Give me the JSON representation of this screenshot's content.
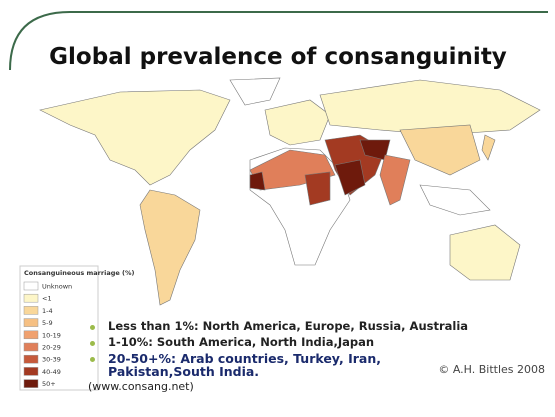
{
  "title": "Global prevalence of consanguinity",
  "legend": {
    "title": "Consanguineous marriage (%)",
    "items": [
      {
        "label": "Unknown",
        "color": "#ffffff"
      },
      {
        "label": "<1",
        "color": "#fdf6c8"
      },
      {
        "label": "1-4",
        "color": "#f9d79a"
      },
      {
        "label": "5-9",
        "color": "#f6c083"
      },
      {
        "label": "10-19",
        "color": "#f0a16f"
      },
      {
        "label": "20-29",
        "color": "#e07f5a"
      },
      {
        "label": "30-39",
        "color": "#c65a3b"
      },
      {
        "label": "40-49",
        "color": "#a33a22"
      },
      {
        "label": "50+",
        "color": "#6e1a0c"
      }
    ]
  },
  "bullets": [
    "Less than 1%: North America, Europe, Russia, Australia",
    "1-10%: South America, North India,Japan",
    "20-50+%: Arab countries, Turkey, Iran, Pakistan,South India."
  ],
  "source": "(www.consang.net)",
  "credit": "© A.H. Bittles 2008"
}
